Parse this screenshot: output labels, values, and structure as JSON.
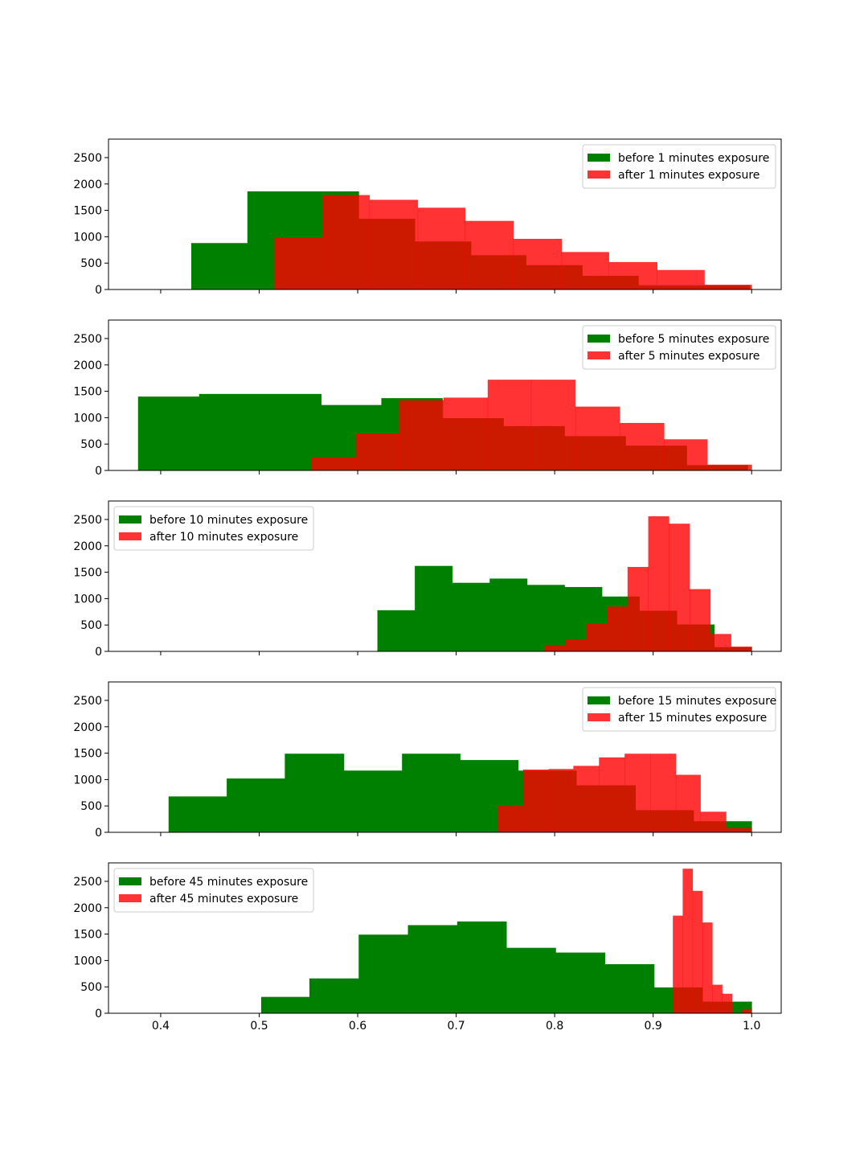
{
  "colors": {
    "before": "#008000",
    "after": "#ff0000",
    "after_alpha": 0.8,
    "axes": "#000000",
    "legend_border": "#cccccc"
  },
  "shared_x_ticks": [
    "0.4",
    "0.5",
    "0.6",
    "0.7",
    "0.8",
    "0.9",
    "1.0"
  ],
  "shared_y_ticks": [
    "0",
    "500",
    "1000",
    "1500",
    "2000",
    "2500"
  ],
  "chart_data": [
    {
      "type": "histogram",
      "xlim": [
        0.347,
        1.03
      ],
      "ylim": [
        0,
        2850
      ],
      "x_ticks": [
        0.4,
        0.5,
        0.6,
        0.7,
        0.8,
        0.9,
        1.0
      ],
      "y_ticks": [
        0,
        500,
        1000,
        1500,
        2000,
        2500
      ],
      "legend_position": "upper right",
      "series": [
        {
          "name": "before 1 minutes exposure",
          "color": "#008000",
          "alpha": 1.0,
          "edges": [
            0.431,
            0.488,
            0.544,
            0.601,
            0.658,
            0.715,
            0.771,
            0.828,
            0.885,
            0.942,
            0.998
          ],
          "values": [
            880,
            1860,
            1860,
            1340,
            910,
            650,
            460,
            260,
            80,
            80
          ]
        },
        {
          "name": "after 1 minutes exposure",
          "color": "#ff0000",
          "alpha": 0.8,
          "edges": [
            0.515,
            0.564,
            0.612,
            0.661,
            0.709,
            0.758,
            0.807,
            0.855,
            0.904,
            0.952,
            1.0
          ],
          "values": [
            990,
            1790,
            1700,
            1550,
            1300,
            960,
            710,
            520,
            370,
            90
          ]
        }
      ]
    },
    {
      "type": "histogram",
      "xlim": [
        0.347,
        1.03
      ],
      "ylim": [
        0,
        2850
      ],
      "x_ticks": [
        0.4,
        0.5,
        0.6,
        0.7,
        0.8,
        0.9,
        1.0
      ],
      "y_ticks": [
        0,
        500,
        1000,
        1500,
        2000,
        2500
      ],
      "legend_position": "upper right",
      "series": [
        {
          "name": "before 5 minutes exposure",
          "color": "#008000",
          "alpha": 1.0,
          "edges": [
            0.377,
            0.439,
            0.501,
            0.563,
            0.624,
            0.686,
            0.748,
            0.81,
            0.872,
            0.934,
            0.996
          ],
          "values": [
            1400,
            1450,
            1450,
            1240,
            1370,
            990,
            840,
            650,
            470,
            100
          ]
        },
        {
          "name": "after 5 minutes exposure",
          "color": "#ff0000",
          "alpha": 0.8,
          "edges": [
            0.553,
            0.598,
            0.642,
            0.687,
            0.732,
            0.776,
            0.821,
            0.866,
            0.911,
            0.955,
            1.0
          ],
          "values": [
            250,
            700,
            1330,
            1380,
            1720,
            1720,
            1210,
            900,
            590,
            110
          ]
        }
      ]
    },
    {
      "type": "histogram",
      "xlim": [
        0.347,
        1.03
      ],
      "ylim": [
        0,
        2850
      ],
      "x_ticks": [
        0.4,
        0.5,
        0.6,
        0.7,
        0.8,
        0.9,
        1.0
      ],
      "y_ticks": [
        0,
        500,
        1000,
        1500,
        2000,
        2500
      ],
      "legend_position": "upper left",
      "series": [
        {
          "name": "before 10 minutes exposure",
          "color": "#008000",
          "alpha": 1.0,
          "edges": [
            0.62,
            0.658,
            0.696,
            0.734,
            0.772,
            0.81,
            0.848,
            0.886,
            0.924,
            0.962,
            1.0
          ],
          "values": [
            780,
            1620,
            1300,
            1380,
            1260,
            1220,
            1040,
            770,
            510,
            80
          ]
        },
        {
          "name": "after 10 minutes exposure",
          "color": "#ff0000",
          "alpha": 0.8,
          "edges": [
            0.79,
            0.811,
            0.832,
            0.853,
            0.874,
            0.895,
            0.916,
            0.937,
            0.958,
            0.979,
            1.0
          ],
          "values": [
            120,
            230,
            530,
            850,
            1600,
            2560,
            2420,
            1180,
            330,
            90
          ]
        }
      ]
    },
    {
      "type": "histogram",
      "xlim": [
        0.347,
        1.03
      ],
      "ylim": [
        0,
        2850
      ],
      "x_ticks": [
        0.4,
        0.5,
        0.6,
        0.7,
        0.8,
        0.9,
        1.0
      ],
      "y_ticks": [
        0,
        500,
        1000,
        1500,
        2000,
        2500
      ],
      "legend_position": "upper right",
      "series": [
        {
          "name": "before 15 minutes exposure",
          "color": "#008000",
          "alpha": 1.0,
          "edges": [
            0.408,
            0.467,
            0.526,
            0.586,
            0.645,
            0.704,
            0.763,
            0.822,
            0.882,
            0.941,
            1.0
          ],
          "values": [
            680,
            1020,
            1490,
            1170,
            1490,
            1370,
            1170,
            890,
            420,
            210
          ]
        },
        {
          "name": "after 15 minutes exposure",
          "color": "#ff0000",
          "alpha": 0.8,
          "edges": [
            0.742,
            0.768,
            0.794,
            0.819,
            0.845,
            0.871,
            0.897,
            0.923,
            0.948,
            0.974,
            1.0
          ],
          "values": [
            500,
            1190,
            1200,
            1260,
            1420,
            1490,
            1490,
            1090,
            390,
            80
          ]
        }
      ]
    },
    {
      "type": "histogram",
      "xlim": [
        0.347,
        1.03
      ],
      "ylim": [
        0,
        2850
      ],
      "x_ticks": [
        0.4,
        0.5,
        0.6,
        0.7,
        0.8,
        0.9,
        1.0
      ],
      "y_ticks": [
        0,
        500,
        1000,
        1500,
        2000,
        2500
      ],
      "x_tick_labels": [
        "0.4",
        "0.5",
        "0.6",
        "0.7",
        "0.8",
        "0.9",
        "1.0"
      ],
      "legend_position": "upper left",
      "series": [
        {
          "name": "before 45 minutes exposure",
          "color": "#008000",
          "alpha": 1.0,
          "edges": [
            0.502,
            0.551,
            0.601,
            0.651,
            0.701,
            0.751,
            0.801,
            0.851,
            0.901,
            0.95,
            1.0
          ],
          "values": [
            310,
            660,
            1490,
            1670,
            1740,
            1240,
            1150,
            930,
            490,
            220
          ]
        },
        {
          "name": "after 45 minutes exposure",
          "color": "#ff0000",
          "alpha": 0.8,
          "edges": [
            0.9,
            0.91,
            0.92,
            0.93,
            0.94,
            0.95,
            0.96,
            0.97,
            0.98,
            0.99,
            1.0
          ],
          "values": [
            0,
            0,
            1850,
            2740,
            2320,
            1720,
            540,
            370,
            0,
            80
          ]
        }
      ]
    }
  ]
}
